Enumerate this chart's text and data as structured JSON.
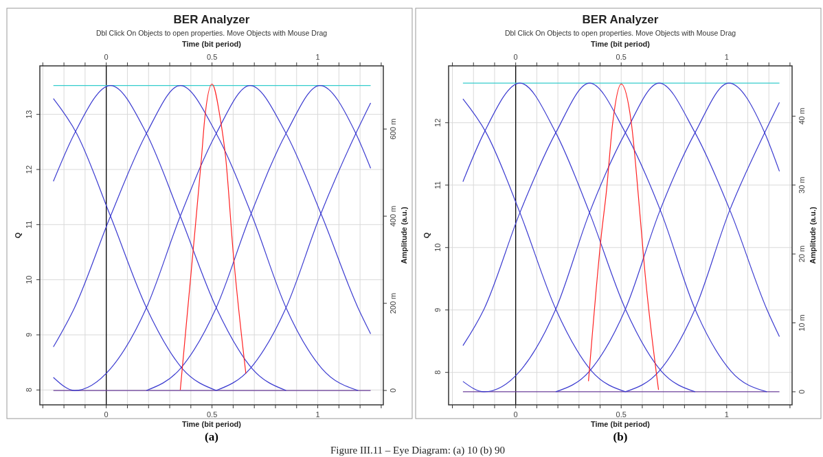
{
  "chart_data": [
    {
      "type": "line",
      "title": "BER Analyzer",
      "subtitle": "Dbl Click On Objects to open properties.  Move Objects with Mouse Drag",
      "xlabel": "Time (bit period)",
      "x2label": "Time (bit period)",
      "ylabel": "Q",
      "y2label": "Amplitude (a.u.)",
      "annotations": [
        "(a)",
        "Figure III.11 – Eye Diagram: (a) 10 (b) 90"
      ],
      "xlim": [
        -0.314,
        1.31
      ],
      "x2lim": [
        -0.314,
        1.31
      ],
      "xticks": [
        {
          "value": -0.3,
          "label": null
        },
        {
          "value": -0.2,
          "label": null
        },
        {
          "value": -0.1,
          "label": null
        },
        0,
        {
          "value": 0.1,
          "label": null
        },
        {
          "value": 0.2,
          "label": null
        },
        {
          "value": 0.3,
          "label": null
        },
        {
          "value": 0.4,
          "label": null
        },
        0.5,
        {
          "value": 0.6,
          "label": null
        },
        {
          "value": 0.7,
          "label": null
        },
        {
          "value": 0.8,
          "label": null
        },
        {
          "value": 0.9,
          "label": null
        },
        1,
        {
          "value": 1.1,
          "label": null
        },
        {
          "value": 1.2,
          "label": null
        },
        {
          "value": 1.3,
          "label": null
        }
      ],
      "x2ticks": [
        {
          "value": -0.3,
          "label": null
        },
        {
          "value": -0.2,
          "label": null
        },
        {
          "value": -0.1,
          "label": null
        },
        0,
        {
          "value": 0.1,
          "label": null
        },
        {
          "value": 0.2,
          "label": null
        },
        {
          "value": 0.3,
          "label": null
        },
        {
          "value": 0.4,
          "label": null
        },
        0.5,
        {
          "value": 0.6,
          "label": null
        },
        {
          "value": 0.7,
          "label": null
        },
        {
          "value": 0.8,
          "label": null
        },
        {
          "value": 0.9,
          "label": null
        },
        1,
        {
          "value": 1.1,
          "label": null
        },
        {
          "value": 1.2,
          "label": null
        },
        {
          "value": 1.3,
          "label": null
        }
      ],
      "ylim": [
        7.73,
        13.88
      ],
      "yticks": [
        8,
        9,
        10,
        11,
        12,
        13
      ],
      "y2lim": [
        -33,
        745
      ],
      "y2ticks": [
        0,
        {
          "value": 200,
          "label": "200 m"
        },
        {
          "value": 400,
          "label": "400 m"
        },
        {
          "value": 600,
          "label": "600 m"
        }
      ],
      "grid": true,
      "marker": "none",
      "line_style": "solid",
      "ref_lines": [
        {
          "axis": "x",
          "value": 0,
          "color": "#000000"
        }
      ],
      "series": [
        {
          "color": "#33cccc",
          "axis": "y2",
          "x": [
            -0.25,
            1.25
          ],
          "values": [
            700,
            700
          ]
        },
        {
          "color": "#6a3d9a",
          "axis": "y2",
          "x": [
            -0.25,
            1.25
          ],
          "values": [
            0,
            0
          ]
        },
        {
          "color": "#3a3ad0",
          "axis": "y2",
          "x": [
            -0.25,
            -0.14,
            0.02,
            0.19,
            0.36,
            0.52
          ],
          "values": [
            670,
            590,
            400,
            190,
            50,
            0
          ]
        },
        {
          "color": "#3a3ad0",
          "axis": "y2",
          "x": [
            -0.25,
            -0.15,
            0.02,
            0.19,
            0.35,
            0.52,
            0.69,
            0.85
          ],
          "values": [
            480,
            590,
            700,
            590,
            400,
            190,
            50,
            0
          ]
        },
        {
          "color": "#3a3ad0",
          "axis": "y2",
          "x": [
            -0.25,
            -0.15,
            0.02,
            0.19,
            0.35,
            0.52,
            0.69,
            0.85,
            1.02,
            1.19
          ],
          "values": [
            100,
            190,
            400,
            590,
            700,
            590,
            400,
            190,
            50,
            0
          ]
        },
        {
          "color": "#3a3ad0",
          "axis": "y2",
          "x": [
            -0.25,
            -0.15,
            0.02,
            0.19,
            0.35,
            0.52,
            0.68,
            0.85,
            1.02,
            1.19,
            1.25
          ],
          "values": [
            30,
            0,
            50,
            190,
            400,
            590,
            700,
            590,
            400,
            190,
            130
          ]
        },
        {
          "color": "#3a3ad0",
          "axis": "y2",
          "x": [
            0.19,
            0.35,
            0.52,
            0.68,
            0.85,
            1.01,
            1.18,
            1.25
          ],
          "values": [
            0,
            50,
            190,
            400,
            590,
            700,
            590,
            510
          ]
        },
        {
          "color": "#3a3ad0",
          "axis": "y2",
          "x": [
            0.52,
            0.68,
            0.85,
            1.01,
            1.18,
            1.25
          ],
          "values": [
            0,
            50,
            190,
            400,
            590,
            660
          ]
        },
        {
          "color": "#ff2020",
          "axis": "y",
          "x": [
            0.35,
            0.41,
            0.45,
            0.465,
            0.5,
            0.54,
            0.565,
            0.6,
            0.66
          ],
          "values": [
            8.0,
            10.5,
            12.2,
            12.9,
            13.55,
            12.9,
            12.2,
            10.5,
            8.3
          ]
        }
      ]
    },
    {
      "type": "line",
      "title": "BER Analyzer",
      "subtitle": "Dbl Click On Objects to open properties.  Move Objects with Mouse Drag",
      "xlabel": "Time (bit period)",
      "x2label": "Time (bit period)",
      "ylabel": "Q",
      "y2label": "Amplitude (a.u.)",
      "annotations": [
        "(b)"
      ],
      "xlim": [
        -0.318,
        1.31
      ],
      "x2lim": [
        -0.318,
        1.31
      ],
      "xticks": [
        {
          "value": -0.3,
          "label": null
        },
        {
          "value": -0.2,
          "label": null
        },
        {
          "value": -0.1,
          "label": null
        },
        0,
        {
          "value": 0.1,
          "label": null
        },
        {
          "value": 0.2,
          "label": null
        },
        {
          "value": 0.3,
          "label": null
        },
        {
          "value": 0.4,
          "label": null
        },
        0.5,
        {
          "value": 0.6,
          "label": null
        },
        {
          "value": 0.7,
          "label": null
        },
        {
          "value": 0.8,
          "label": null
        },
        {
          "value": 0.9,
          "label": null
        },
        1,
        {
          "value": 1.1,
          "label": null
        },
        {
          "value": 1.2,
          "label": null
        },
        {
          "value": 1.3,
          "label": null
        }
      ],
      "x2ticks": [
        {
          "value": -0.3,
          "label": null
        },
        {
          "value": -0.2,
          "label": null
        },
        {
          "value": -0.1,
          "label": null
        },
        0,
        {
          "value": 0.1,
          "label": null
        },
        {
          "value": 0.2,
          "label": null
        },
        {
          "value": 0.3,
          "label": null
        },
        {
          "value": 0.4,
          "label": null
        },
        0.5,
        {
          "value": 0.6,
          "label": null
        },
        {
          "value": 0.7,
          "label": null
        },
        {
          "value": 0.8,
          "label": null
        },
        {
          "value": 0.9,
          "label": null
        },
        1,
        {
          "value": 1.1,
          "label": null
        },
        {
          "value": 1.2,
          "label": null
        },
        {
          "value": 1.3,
          "label": null
        }
      ],
      "ylim": [
        7.48,
        12.91
      ],
      "yticks": [
        8,
        9,
        10,
        11,
        12
      ],
      "y2lim": [
        -1.9,
        47.3
      ],
      "y2ticks": [
        0,
        {
          "value": 10,
          "label": "10 m"
        },
        {
          "value": 20,
          "label": "20 m"
        },
        {
          "value": 30,
          "label": "30 m"
        },
        {
          "value": 40,
          "label": "40 m"
        }
      ],
      "grid": true,
      "marker": "none",
      "line_style": "solid",
      "ref_lines": [
        {
          "axis": "x",
          "value": 0,
          "color": "#000000"
        }
      ],
      "series": [
        {
          "color": "#33cccc",
          "axis": "y2",
          "x": [
            -0.25,
            1.25
          ],
          "values": [
            44.8,
            44.8
          ]
        },
        {
          "color": "#6a3d9a",
          "axis": "y2",
          "x": [
            -0.25,
            1.25
          ],
          "values": [
            0,
            0
          ]
        },
        {
          "color": "#3a3ad0",
          "axis": "y2",
          "x": [
            -0.25,
            -0.14,
            0.02,
            0.19,
            0.36,
            0.52
          ],
          "values": [
            42.5,
            37.6,
            26,
            12,
            3,
            0
          ]
        },
        {
          "color": "#3a3ad0",
          "axis": "y2",
          "x": [
            -0.25,
            -0.15,
            0.02,
            0.19,
            0.35,
            0.52,
            0.69,
            0.85
          ],
          "values": [
            30.5,
            37.6,
            44.8,
            37.6,
            26,
            12,
            3,
            0
          ]
        },
        {
          "color": "#3a3ad0",
          "axis": "y2",
          "x": [
            -0.25,
            -0.15,
            0.02,
            0.19,
            0.35,
            0.52,
            0.69,
            0.85,
            1.02,
            1.19
          ],
          "values": [
            6.7,
            12,
            26,
            37.6,
            44.8,
            37.6,
            26,
            12,
            3,
            0
          ]
        },
        {
          "color": "#3a3ad0",
          "axis": "y2",
          "x": [
            -0.25,
            -0.15,
            0.02,
            0.19,
            0.35,
            0.52,
            0.68,
            0.85,
            1.02,
            1.19,
            1.25
          ],
          "values": [
            1.5,
            0,
            3,
            12,
            26,
            37.6,
            44.8,
            37.6,
            26,
            12,
            8
          ]
        },
        {
          "color": "#3a3ad0",
          "axis": "y2",
          "x": [
            0.19,
            0.35,
            0.52,
            0.68,
            0.85,
            1.01,
            1.18,
            1.25
          ],
          "values": [
            0,
            3,
            12,
            26,
            37.6,
            44.8,
            37.6,
            32
          ]
        },
        {
          "color": "#3a3ad0",
          "axis": "y2",
          "x": [
            0.52,
            0.68,
            0.85,
            1.01,
            1.18,
            1.25
          ],
          "values": [
            0,
            3,
            12,
            26,
            37.6,
            42
          ]
        },
        {
          "color": "#ff2020",
          "axis": "y",
          "x": [
            0.345,
            0.406,
            0.43,
            0.46,
            0.5,
            0.548,
            0.59,
            0.61,
            0.677
          ],
          "values": [
            7.86,
            10.2,
            10.9,
            12.0,
            12.62,
            12.0,
            10.49,
            9.7,
            7.72
          ]
        }
      ]
    }
  ]
}
